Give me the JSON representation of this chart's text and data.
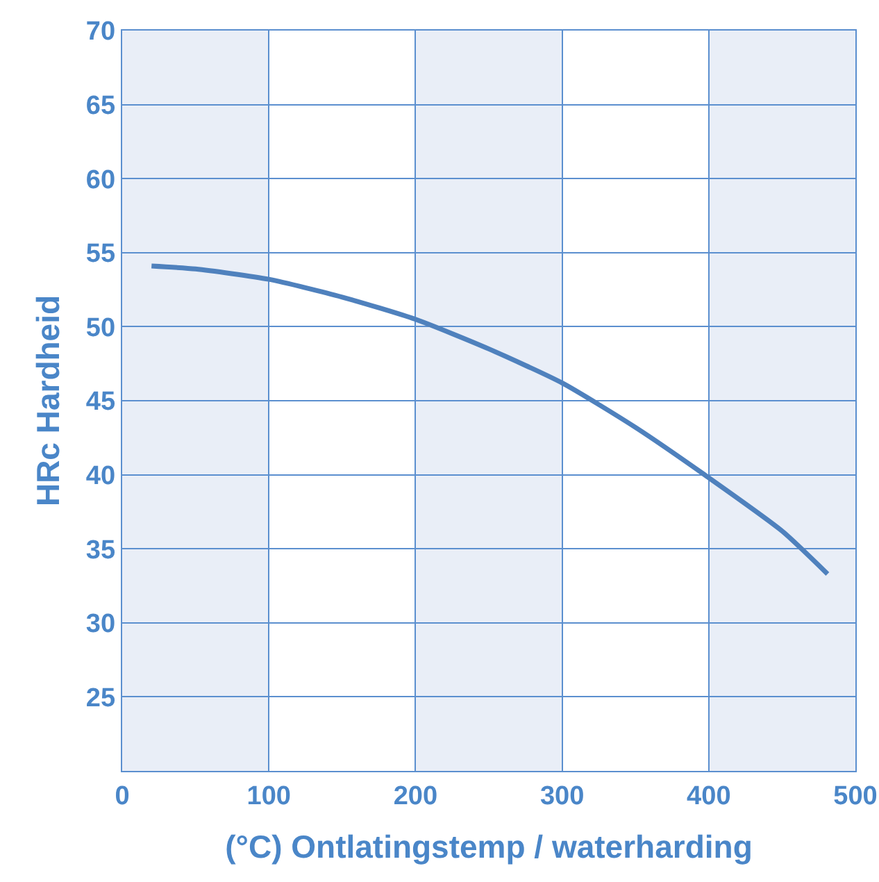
{
  "chart_data": {
    "type": "line",
    "xlabel": "(°C) Ontlatingstemp / waterharding",
    "ylabel": "HRc Hardheid",
    "x": [
      20,
      50,
      100,
      150,
      200,
      250,
      300,
      350,
      400,
      450,
      481
    ],
    "series": [
      {
        "color": "#4f81bd",
        "values": [
          54.1,
          53.9,
          53.2,
          52.0,
          50.5,
          48.5,
          46.2,
          43.2,
          39.8,
          36.2,
          33.3
        ]
      }
    ],
    "xlim": [
      0,
      500
    ],
    "xticks": [
      0,
      100,
      200,
      300,
      400,
      500
    ],
    "ylim": [
      20,
      70
    ],
    "yticks": [
      25,
      30,
      35,
      40,
      45,
      50,
      55,
      60,
      65,
      70
    ],
    "grid": true,
    "legend": false,
    "marker": "none",
    "line_style": "solid",
    "bands": [
      {
        "axis": "x",
        "from": 0,
        "to": 100,
        "color": "#e9eef7"
      },
      {
        "axis": "x",
        "from": 200,
        "to": 300,
        "color": "#e9eef7"
      },
      {
        "axis": "x",
        "from": 400,
        "to": 500,
        "color": "#e9eef7"
      }
    ]
  }
}
